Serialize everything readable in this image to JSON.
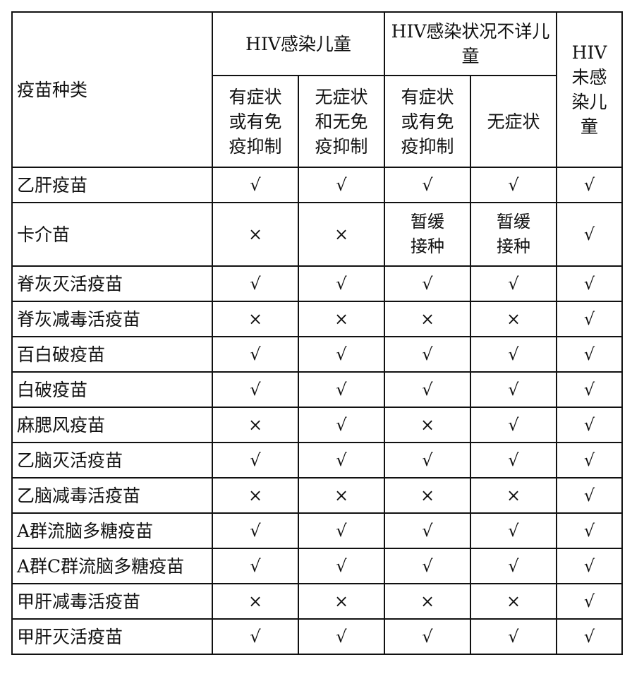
{
  "header": {
    "vaccine_type": "疫苗种类",
    "group_infected": "HIV感染儿童",
    "group_unknown": "HIV感染状况不详儿童",
    "group_uninfected": "HIV未感染儿童",
    "sub_infected_symptomatic": "有症状或有免疫抑制",
    "sub_infected_asymptomatic": "无症状和无免疫抑制",
    "sub_unknown_symptomatic": "有症状或有免疫抑制",
    "sub_unknown_asymptomatic": "无症状"
  },
  "rows": [
    {
      "name": "乙肝疫苗",
      "values": [
        "√",
        "√",
        "√",
        "√",
        "√"
      ]
    },
    {
      "name": "卡介苗",
      "values": [
        "×",
        "×",
        "暂缓接种",
        "暂缓接种",
        "√"
      ]
    },
    {
      "name": "脊灰灭活疫苗",
      "values": [
        "√",
        "√",
        "√",
        "√",
        "√"
      ]
    },
    {
      "name": "脊灰减毒活疫苗",
      "values": [
        "×",
        "×",
        "×",
        "×",
        "√"
      ]
    },
    {
      "name": "百白破疫苗",
      "values": [
        "√",
        "√",
        "√",
        "√",
        "√"
      ]
    },
    {
      "name": "白破疫苗",
      "values": [
        "√",
        "√",
        "√",
        "√",
        "√"
      ]
    },
    {
      "name": "麻腮风疫苗",
      "values": [
        "×",
        "√",
        "×",
        "√",
        "√"
      ]
    },
    {
      "name": "乙脑灭活疫苗",
      "values": [
        "√",
        "√",
        "√",
        "√",
        "√"
      ]
    },
    {
      "name": "乙脑减毒活疫苗",
      "values": [
        "×",
        "×",
        "×",
        "×",
        "√"
      ]
    },
    {
      "name": "A群流脑多糖疫苗",
      "values": [
        "√",
        "√",
        "√",
        "√",
        "√"
      ]
    },
    {
      "name": "A群C群流脑多糖疫苗",
      "values": [
        "√",
        "√",
        "√",
        "√",
        "√"
      ]
    },
    {
      "name": "甲肝减毒活疫苗",
      "values": [
        "×",
        "×",
        "×",
        "×",
        "√"
      ]
    },
    {
      "name": "甲肝灭活疫苗",
      "values": [
        "√",
        "√",
        "√",
        "√",
        "√"
      ]
    }
  ]
}
